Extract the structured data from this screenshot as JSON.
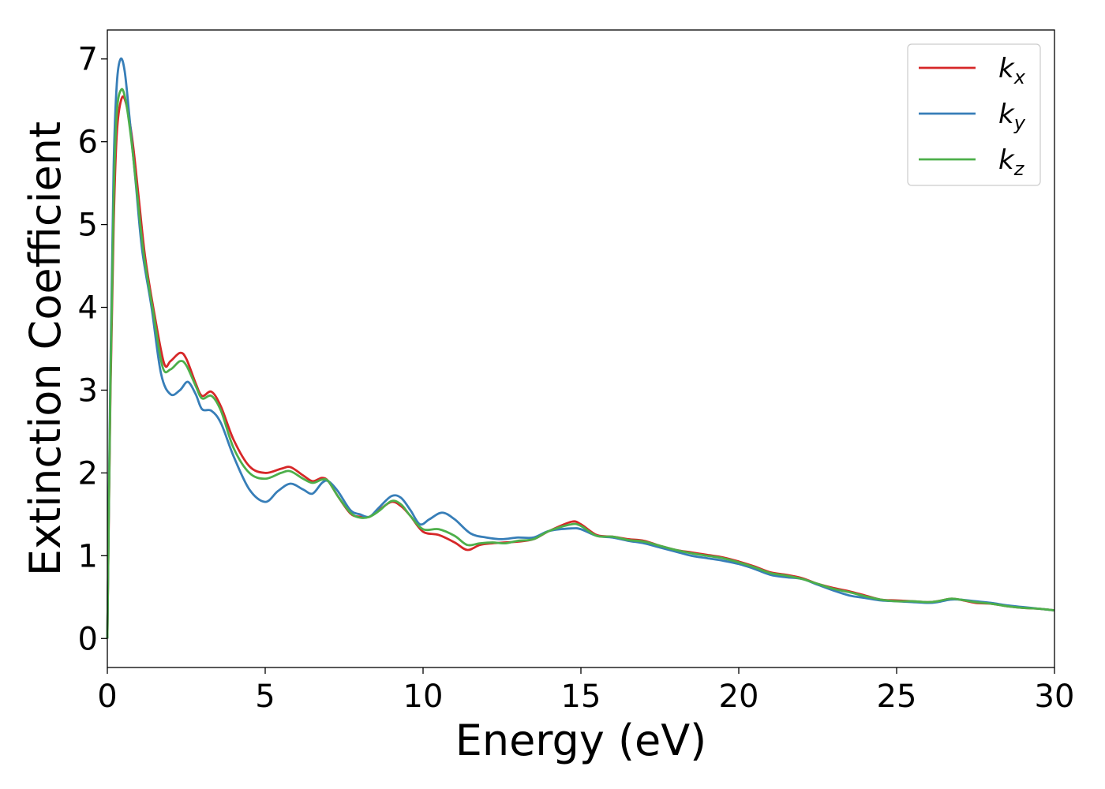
{
  "chart_data": {
    "type": "line",
    "title": "",
    "xlabel": "Energy (eV)",
    "ylabel": "Extinction Coefficient",
    "xlim": [
      0,
      30
    ],
    "ylim": [
      -0.35,
      7.35
    ],
    "xticks": [
      0,
      5,
      10,
      15,
      20,
      25,
      30
    ],
    "yticks": [
      0,
      1,
      2,
      3,
      4,
      5,
      6,
      7
    ],
    "grid": false,
    "legend_position": "top-right",
    "series": [
      {
        "name": "k_x",
        "label_base": "k",
        "label_sub": "x",
        "color": "#d62728",
        "x": [
          0,
          0.1,
          0.2,
          0.3,
          0.45,
          0.6,
          0.8,
          1.0,
          1.2,
          1.5,
          1.8,
          2.0,
          2.3,
          2.5,
          2.8,
          3.0,
          3.3,
          3.6,
          4.0,
          4.5,
          5.0,
          5.5,
          5.8,
          6.2,
          6.5,
          6.8,
          7.0,
          7.3,
          7.7,
          8.0,
          8.3,
          8.6,
          9.0,
          9.3,
          9.6,
          10.0,
          10.5,
          11.0,
          11.4,
          11.8,
          12.2,
          12.6,
          13.0,
          13.5,
          14.0,
          14.7,
          15.0,
          15.5,
          16.0,
          16.5,
          17.0,
          17.5,
          18.0,
          18.5,
          19.0,
          19.5,
          20.0,
          20.5,
          21.0,
          21.5,
          22.0,
          22.5,
          23.0,
          23.5,
          24.0,
          24.5,
          25.0,
          25.5,
          26.0,
          26.3,
          26.7,
          27.0,
          27.5,
          28.0,
          28.5,
          29.0,
          29.5,
          30.0
        ],
        "y": [
          0.0,
          3.0,
          5.0,
          6.1,
          6.52,
          6.45,
          6.0,
          5.3,
          4.6,
          3.9,
          3.32,
          3.35,
          3.45,
          3.38,
          3.08,
          2.93,
          2.98,
          2.8,
          2.4,
          2.08,
          2.0,
          2.05,
          2.07,
          1.97,
          1.9,
          1.94,
          1.9,
          1.72,
          1.51,
          1.47,
          1.47,
          1.55,
          1.65,
          1.6,
          1.48,
          1.29,
          1.25,
          1.16,
          1.07,
          1.13,
          1.15,
          1.16,
          1.17,
          1.2,
          1.3,
          1.41,
          1.38,
          1.25,
          1.23,
          1.2,
          1.18,
          1.12,
          1.07,
          1.04,
          1.01,
          0.98,
          0.93,
          0.87,
          0.8,
          0.77,
          0.73,
          0.66,
          0.61,
          0.57,
          0.52,
          0.47,
          0.46,
          0.45,
          0.44,
          0.45,
          0.48,
          0.47,
          0.43,
          0.42,
          0.39,
          0.37,
          0.36,
          0.34
        ]
      },
      {
        "name": "k_y",
        "label_base": "k",
        "label_sub": "y",
        "color": "#377eb8",
        "x": [
          0,
          0.1,
          0.2,
          0.3,
          0.42,
          0.55,
          0.7,
          0.9,
          1.1,
          1.4,
          1.7,
          2.0,
          2.3,
          2.55,
          2.8,
          3.0,
          3.3,
          3.6,
          4.0,
          4.5,
          5.0,
          5.4,
          5.8,
          6.2,
          6.5,
          6.8,
          7.0,
          7.3,
          7.7,
          8.0,
          8.3,
          8.6,
          9.0,
          9.3,
          9.6,
          9.9,
          10.2,
          10.6,
          11.0,
          11.5,
          12.0,
          12.5,
          13.0,
          13.5,
          14.0,
          14.7,
          15.0,
          15.5,
          16.0,
          16.5,
          17.0,
          17.5,
          18.0,
          18.5,
          19.0,
          19.5,
          20.0,
          20.5,
          21.0,
          21.5,
          22.0,
          22.5,
          23.0,
          23.5,
          24.0,
          24.5,
          25.0,
          25.5,
          26.0,
          26.3,
          26.7,
          27.0,
          27.5,
          28.0,
          28.5,
          29.0,
          29.5,
          30.0
        ],
        "y": [
          0.0,
          3.3,
          5.7,
          6.7,
          7.0,
          6.85,
          6.3,
          5.5,
          4.7,
          4.0,
          3.2,
          2.95,
          3.0,
          3.1,
          2.95,
          2.77,
          2.75,
          2.6,
          2.2,
          1.8,
          1.65,
          1.78,
          1.87,
          1.8,
          1.75,
          1.88,
          1.9,
          1.78,
          1.55,
          1.5,
          1.47,
          1.58,
          1.72,
          1.7,
          1.55,
          1.38,
          1.44,
          1.52,
          1.44,
          1.27,
          1.22,
          1.2,
          1.22,
          1.22,
          1.3,
          1.33,
          1.32,
          1.24,
          1.22,
          1.18,
          1.15,
          1.1,
          1.05,
          1.0,
          0.97,
          0.94,
          0.9,
          0.84,
          0.77,
          0.74,
          0.72,
          0.65,
          0.58,
          0.52,
          0.49,
          0.46,
          0.45,
          0.44,
          0.43,
          0.44,
          0.47,
          0.47,
          0.45,
          0.43,
          0.4,
          0.38,
          0.36,
          0.34
        ]
      },
      {
        "name": "k_z",
        "label_base": "k",
        "label_sub": "z",
        "color": "#4daf4a",
        "x": [
          0,
          0.1,
          0.2,
          0.3,
          0.44,
          0.58,
          0.75,
          0.95,
          1.15,
          1.45,
          1.75,
          2.0,
          2.3,
          2.5,
          2.8,
          3.0,
          3.3,
          3.6,
          4.0,
          4.5,
          5.0,
          5.5,
          5.8,
          6.2,
          6.5,
          6.8,
          7.0,
          7.3,
          7.7,
          8.0,
          8.3,
          8.6,
          9.0,
          9.3,
          9.6,
          10.0,
          10.5,
          11.0,
          11.4,
          11.8,
          12.2,
          12.6,
          13.0,
          13.5,
          14.0,
          14.7,
          15.0,
          15.5,
          16.0,
          16.5,
          17.0,
          17.5,
          18.0,
          18.5,
          19.0,
          19.5,
          20.0,
          20.5,
          21.0,
          21.5,
          22.0,
          22.5,
          23.0,
          23.5,
          24.0,
          24.5,
          25.0,
          25.5,
          26.0,
          26.3,
          26.7,
          27.0,
          27.5,
          28.0,
          28.5,
          29.0,
          29.5,
          30.0
        ],
        "y": [
          0.0,
          3.1,
          5.3,
          6.35,
          6.63,
          6.5,
          6.05,
          5.35,
          4.65,
          3.95,
          3.28,
          3.25,
          3.35,
          3.3,
          3.05,
          2.9,
          2.93,
          2.75,
          2.3,
          2.0,
          1.93,
          2.0,
          2.02,
          1.93,
          1.88,
          1.92,
          1.9,
          1.72,
          1.52,
          1.46,
          1.47,
          1.54,
          1.66,
          1.62,
          1.48,
          1.32,
          1.32,
          1.24,
          1.13,
          1.15,
          1.16,
          1.15,
          1.18,
          1.2,
          1.3,
          1.38,
          1.36,
          1.24,
          1.23,
          1.19,
          1.17,
          1.12,
          1.07,
          1.03,
          1.0,
          0.97,
          0.92,
          0.86,
          0.79,
          0.76,
          0.72,
          0.66,
          0.6,
          0.56,
          0.51,
          0.47,
          0.45,
          0.45,
          0.44,
          0.45,
          0.48,
          0.47,
          0.44,
          0.42,
          0.39,
          0.37,
          0.36,
          0.34
        ]
      }
    ]
  }
}
